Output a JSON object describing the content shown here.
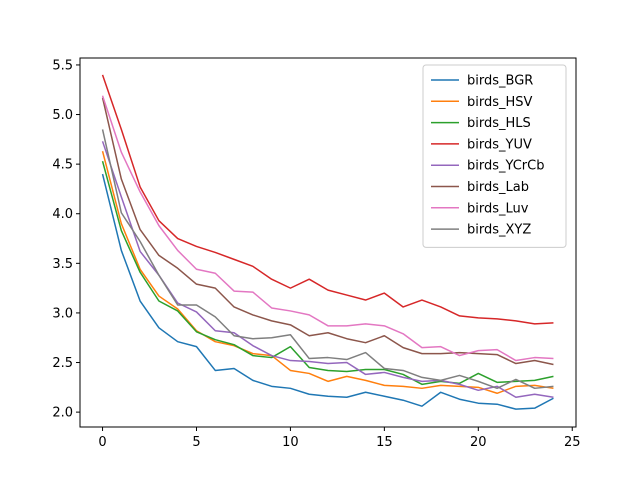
{
  "chart_data": {
    "type": "line",
    "title": "",
    "xlabel": "",
    "ylabel": "",
    "xlim": [
      -1.2,
      25.2
    ],
    "ylim": [
      1.85,
      5.57
    ],
    "xticks": [
      0,
      5,
      10,
      15,
      20,
      25
    ],
    "yticks": [
      2.0,
      2.5,
      3.0,
      3.5,
      4.0,
      4.5,
      5.0,
      5.5
    ],
    "grid": false,
    "legend_position": "top-right",
    "x": [
      0,
      1,
      2,
      3,
      4,
      5,
      6,
      7,
      8,
      9,
      10,
      11,
      12,
      13,
      14,
      15,
      16,
      17,
      18,
      19,
      20,
      21,
      22,
      23,
      24
    ],
    "series": [
      {
        "name": "birds_BGR",
        "color": "#1f77b4",
        "values": [
          4.4,
          3.63,
          3.12,
          2.85,
          2.71,
          2.66,
          2.42,
          2.44,
          2.32,
          2.26,
          2.24,
          2.18,
          2.16,
          2.15,
          2.2,
          2.16,
          2.12,
          2.06,
          2.2,
          2.13,
          2.09,
          2.08,
          2.03,
          2.04,
          2.14
        ]
      },
      {
        "name": "birds_HSV",
        "color": "#ff7f0e",
        "values": [
          4.63,
          3.9,
          3.44,
          3.17,
          3.04,
          2.82,
          2.71,
          2.67,
          2.59,
          2.57,
          2.42,
          2.39,
          2.31,
          2.36,
          2.32,
          2.27,
          2.26,
          2.24,
          2.27,
          2.26,
          2.25,
          2.19,
          2.26,
          2.27,
          2.24
        ]
      },
      {
        "name": "birds_HLS",
        "color": "#2ca02c",
        "values": [
          4.53,
          3.83,
          3.41,
          3.12,
          3.02,
          2.81,
          2.73,
          2.68,
          2.57,
          2.55,
          2.66,
          2.45,
          2.42,
          2.41,
          2.43,
          2.43,
          2.38,
          2.28,
          2.31,
          2.29,
          2.39,
          2.3,
          2.31,
          2.32,
          2.36
        ]
      },
      {
        "name": "birds_YUV",
        "color": "#d62728",
        "values": [
          5.4,
          4.85,
          4.27,
          3.93,
          3.75,
          3.67,
          3.61,
          3.54,
          3.47,
          3.34,
          3.25,
          3.34,
          3.23,
          3.18,
          3.13,
          3.2,
          3.06,
          3.13,
          3.06,
          2.97,
          2.95,
          2.94,
          2.92,
          2.89,
          2.9
        ]
      },
      {
        "name": "birds_YCrCb",
        "color": "#9467bd",
        "values": [
          4.73,
          4.17,
          3.62,
          3.38,
          3.1,
          3.01,
          2.82,
          2.8,
          2.67,
          2.57,
          2.52,
          2.51,
          2.49,
          2.5,
          2.38,
          2.4,
          2.35,
          2.31,
          2.32,
          2.28,
          2.22,
          2.26,
          2.15,
          2.18,
          2.15
        ]
      },
      {
        "name": "birds_Lab",
        "color": "#8c564b",
        "values": [
          5.17,
          4.35,
          3.84,
          3.58,
          3.45,
          3.29,
          3.25,
          3.06,
          2.98,
          2.92,
          2.88,
          2.77,
          2.8,
          2.74,
          2.7,
          2.77,
          2.65,
          2.59,
          2.59,
          2.6,
          2.59,
          2.58,
          2.49,
          2.52,
          2.48
        ]
      },
      {
        "name": "birds_Luv",
        "color": "#e377c2",
        "values": [
          5.19,
          4.62,
          4.22,
          3.88,
          3.63,
          3.44,
          3.4,
          3.22,
          3.21,
          3.05,
          3.02,
          2.98,
          2.87,
          2.87,
          2.89,
          2.87,
          2.79,
          2.65,
          2.66,
          2.57,
          2.62,
          2.63,
          2.52,
          2.55,
          2.54
        ]
      },
      {
        "name": "birds_XYZ",
        "color": "#7f7f7f",
        "values": [
          4.85,
          4.01,
          3.72,
          3.38,
          3.08,
          3.08,
          2.96,
          2.77,
          2.74,
          2.75,
          2.78,
          2.54,
          2.55,
          2.53,
          2.6,
          2.44,
          2.42,
          2.35,
          2.32,
          2.37,
          2.31,
          2.24,
          2.33,
          2.24,
          2.26
        ]
      }
    ]
  }
}
